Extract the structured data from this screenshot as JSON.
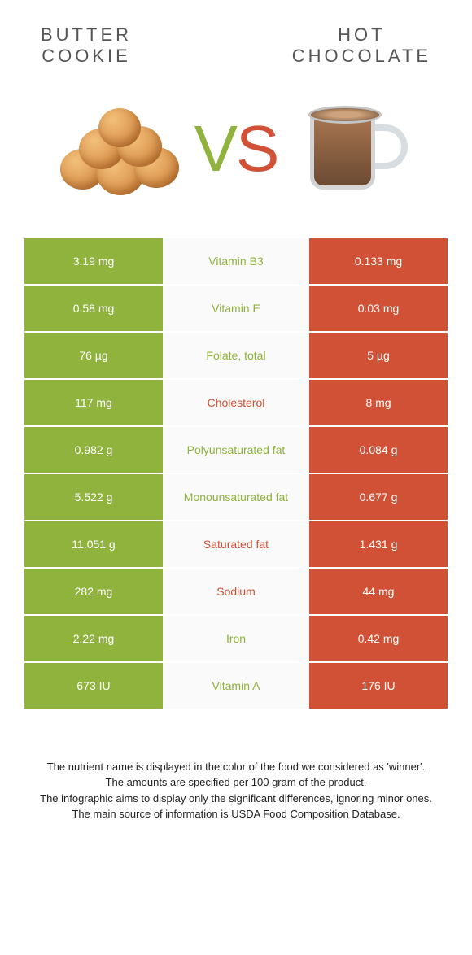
{
  "colors": {
    "green": "#8fb33c",
    "orange": "#d15136",
    "row_bg": "#fafafa"
  },
  "header": {
    "left_line1": "Butter",
    "left_line2": "Cookie",
    "right_line1": "Hot",
    "right_line2": "Chocolate"
  },
  "vs": {
    "v": "V",
    "s": "S"
  },
  "rows": [
    {
      "left": "3.19 mg",
      "label": "Vitamin B3",
      "right": "0.133 mg",
      "winner": "green"
    },
    {
      "left": "0.58 mg",
      "label": "Vitamin E",
      "right": "0.03 mg",
      "winner": "green"
    },
    {
      "left": "76 µg",
      "label": "Folate, total",
      "right": "5 µg",
      "winner": "green"
    },
    {
      "left": "117 mg",
      "label": "Cholesterol",
      "right": "8 mg",
      "winner": "orange"
    },
    {
      "left": "0.982 g",
      "label": "Polyunsaturated fat",
      "right": "0.084 g",
      "winner": "green"
    },
    {
      "left": "5.522 g",
      "label": "Monounsaturated fat",
      "right": "0.677 g",
      "winner": "green"
    },
    {
      "left": "11.051 g",
      "label": "Saturated fat",
      "right": "1.431 g",
      "winner": "orange"
    },
    {
      "left": "282 mg",
      "label": "Sodium",
      "right": "44 mg",
      "winner": "orange"
    },
    {
      "left": "2.22 mg",
      "label": "Iron",
      "right": "0.42 mg",
      "winner": "green"
    },
    {
      "left": "673 IU",
      "label": "Vitamin A",
      "right": "176 IU",
      "winner": "green"
    }
  ],
  "footer": {
    "line1": "The nutrient name is displayed in the color of the food we considered as 'winner'.",
    "line2": "The amounts are specified per 100 gram of the product.",
    "line3": "The infographic aims to display only the significant differences, ignoring minor ones.",
    "line4": "The main source of information is USDA Food Composition Database."
  }
}
